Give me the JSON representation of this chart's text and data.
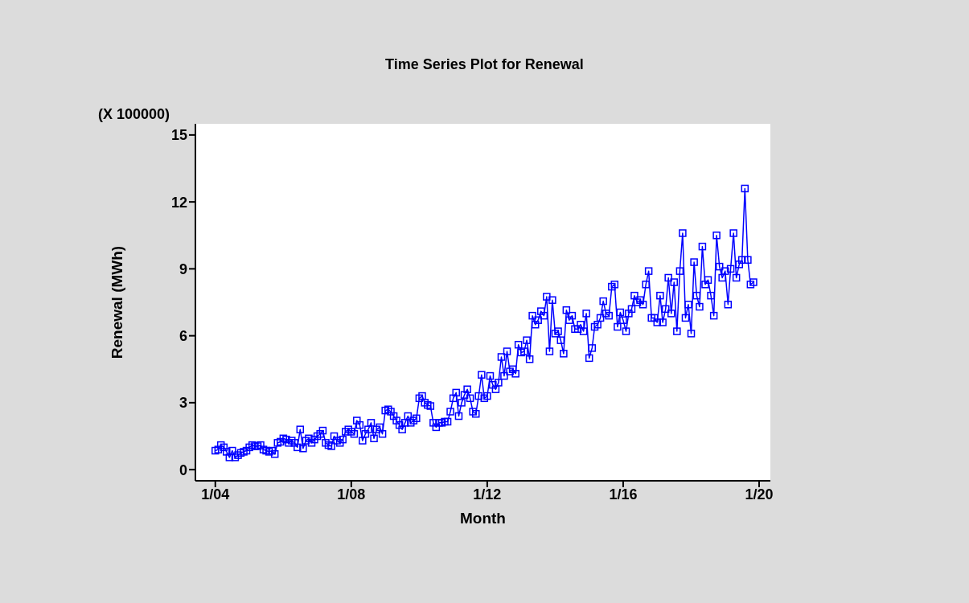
{
  "chart_data": {
    "type": "line",
    "title": "Time Series Plot for Renewal",
    "xlabel": "Month",
    "ylabel": "Renewal (MWh)",
    "annotations": [
      "(X 100000)"
    ],
    "marker": "square",
    "line_style": "solid",
    "color": "#0000ff",
    "x": [
      "2004-01",
      "2004-02",
      "2004-03",
      "2004-04",
      "2004-05",
      "2004-06",
      "2004-07",
      "2004-08",
      "2004-09",
      "2004-10",
      "2004-11",
      "2004-12",
      "2005-01",
      "2005-02",
      "2005-03",
      "2005-04",
      "2005-05",
      "2005-06",
      "2005-07",
      "2005-08",
      "2005-09",
      "2005-10",
      "2005-11",
      "2005-12",
      "2006-01",
      "2006-02",
      "2006-03",
      "2006-04",
      "2006-05",
      "2006-06",
      "2006-07",
      "2006-08",
      "2006-09",
      "2006-10",
      "2006-11",
      "2006-12",
      "2007-01",
      "2007-02",
      "2007-03",
      "2007-04",
      "2007-05",
      "2007-06",
      "2007-07",
      "2007-08",
      "2007-09",
      "2007-10",
      "2007-11",
      "2007-12",
      "2008-01",
      "2008-02",
      "2008-03",
      "2008-04",
      "2008-05",
      "2008-06",
      "2008-07",
      "2008-08",
      "2008-09",
      "2008-10",
      "2008-11",
      "2008-12",
      "2009-01",
      "2009-02",
      "2009-03",
      "2009-04",
      "2009-05",
      "2009-06",
      "2009-07",
      "2009-08",
      "2009-09",
      "2009-10",
      "2009-11",
      "2009-12",
      "2010-01",
      "2010-02",
      "2010-03",
      "2010-04",
      "2010-05",
      "2010-06",
      "2010-07",
      "2010-08",
      "2010-09",
      "2010-10",
      "2010-11",
      "2010-12",
      "2011-01",
      "2011-02",
      "2011-03",
      "2011-04",
      "2011-05",
      "2011-06",
      "2011-07",
      "2011-08",
      "2011-09",
      "2011-10",
      "2011-11",
      "2011-12",
      "2012-01",
      "2012-02",
      "2012-03",
      "2012-04",
      "2012-05",
      "2012-06",
      "2012-07",
      "2012-08",
      "2012-09",
      "2012-10",
      "2012-11",
      "2012-12",
      "2013-01",
      "2013-02",
      "2013-03",
      "2013-04",
      "2013-05",
      "2013-06",
      "2013-07",
      "2013-08",
      "2013-09",
      "2013-10",
      "2013-11",
      "2013-12",
      "2014-01",
      "2014-02",
      "2014-03",
      "2014-04",
      "2014-05",
      "2014-06",
      "2014-07",
      "2014-08",
      "2014-09",
      "2014-10",
      "2014-11",
      "2014-12",
      "2015-01",
      "2015-02",
      "2015-03",
      "2015-04",
      "2015-05",
      "2015-06",
      "2015-07",
      "2015-08",
      "2015-09",
      "2015-10",
      "2015-11",
      "2015-12",
      "2016-01",
      "2016-02",
      "2016-03",
      "2016-04",
      "2016-05",
      "2016-06",
      "2016-07",
      "2016-08",
      "2016-09",
      "2016-10",
      "2016-11",
      "2016-12",
      "2017-01",
      "2017-02",
      "2017-03",
      "2017-04",
      "2017-05",
      "2017-06",
      "2017-07",
      "2017-08",
      "2017-09",
      "2017-10",
      "2017-11",
      "2017-12",
      "2018-01",
      "2018-02",
      "2018-03",
      "2018-04",
      "2018-05",
      "2018-06",
      "2018-07",
      "2018-08",
      "2018-09",
      "2018-10",
      "2018-11",
      "2018-12",
      "2019-01",
      "2019-02",
      "2019-03",
      "2019-04",
      "2019-05",
      "2019-06",
      "2019-07",
      "2019-08",
      "2019-09",
      "2019-10",
      "2019-11"
    ],
    "values": [
      0.85,
      0.9,
      1.1,
      1.0,
      0.8,
      0.55,
      0.85,
      0.55,
      0.65,
      0.75,
      0.8,
      0.85,
      1.0,
      1.1,
      1.05,
      1.05,
      1.1,
      0.9,
      0.85,
      0.8,
      0.85,
      0.7,
      1.2,
      1.25,
      1.4,
      1.35,
      1.2,
      1.3,
      1.2,
      1.0,
      1.8,
      0.95,
      1.3,
      1.4,
      1.2,
      1.35,
      1.5,
      1.6,
      1.75,
      1.2,
      1.1,
      1.05,
      1.5,
      1.3,
      1.2,
      1.35,
      1.7,
      1.8,
      1.7,
      1.6,
      2.2,
      2.0,
      1.3,
      1.6,
      1.8,
      2.1,
      1.4,
      1.8,
      1.9,
      1.6,
      2.65,
      2.7,
      2.6,
      2.4,
      2.2,
      2.0,
      1.8,
      2.1,
      2.4,
      2.1,
      2.2,
      2.3,
      3.2,
      3.3,
      3.0,
      2.9,
      2.85,
      2.1,
      1.9,
      2.1,
      2.1,
      2.15,
      2.15,
      2.6,
      3.2,
      3.45,
      2.4,
      3.0,
      3.35,
      3.6,
      3.2,
      2.6,
      2.5,
      3.3,
      4.25,
      3.2,
      3.3,
      4.2,
      3.8,
      3.6,
      3.9,
      5.05,
      4.2,
      5.3,
      4.4,
      4.5,
      4.3,
      5.6,
      5.25,
      5.3,
      5.8,
      4.95,
      6.9,
      6.5,
      6.7,
      7.1,
      6.9,
      7.75,
      5.3,
      7.6,
      6.1,
      6.2,
      5.8,
      5.2,
      7.15,
      6.7,
      6.9,
      6.3,
      6.3,
      6.5,
      6.2,
      7.0,
      5.0,
      5.45,
      6.4,
      6.5,
      6.8,
      7.55,
      7.0,
      6.9,
      8.2,
      8.3,
      6.4,
      7.05,
      6.7,
      6.2,
      7.0,
      7.2,
      7.8,
      7.5,
      7.6,
      7.4,
      8.3,
      8.9,
      6.8,
      6.8,
      6.6,
      7.8,
      6.6,
      7.2,
      8.6,
      7.0,
      8.4,
      6.2,
      8.9,
      10.6,
      6.8,
      7.4,
      6.1,
      9.3,
      7.8,
      7.3,
      10.0,
      8.3,
      8.5,
      7.8,
      6.9,
      10.5,
      9.1,
      8.6,
      8.9,
      7.4,
      9.0,
      10.6,
      8.6,
      9.2,
      9.4,
      12.6,
      9.4,
      8.3,
      8.4
    ],
    "xlim": [
      "2003-06",
      "2020-05"
    ],
    "xticks": [
      {
        "value": "2004-01",
        "label": "1/04"
      },
      {
        "value": "2008-01",
        "label": "1/08"
      },
      {
        "value": "2012-01",
        "label": "1/12"
      },
      {
        "value": "2016-01",
        "label": "1/16"
      },
      {
        "value": "2020-01",
        "label": "1/20"
      }
    ],
    "ylim": [
      -0.5,
      15.5
    ],
    "yticks": [
      0,
      3,
      6,
      9,
      12,
      15
    ]
  }
}
